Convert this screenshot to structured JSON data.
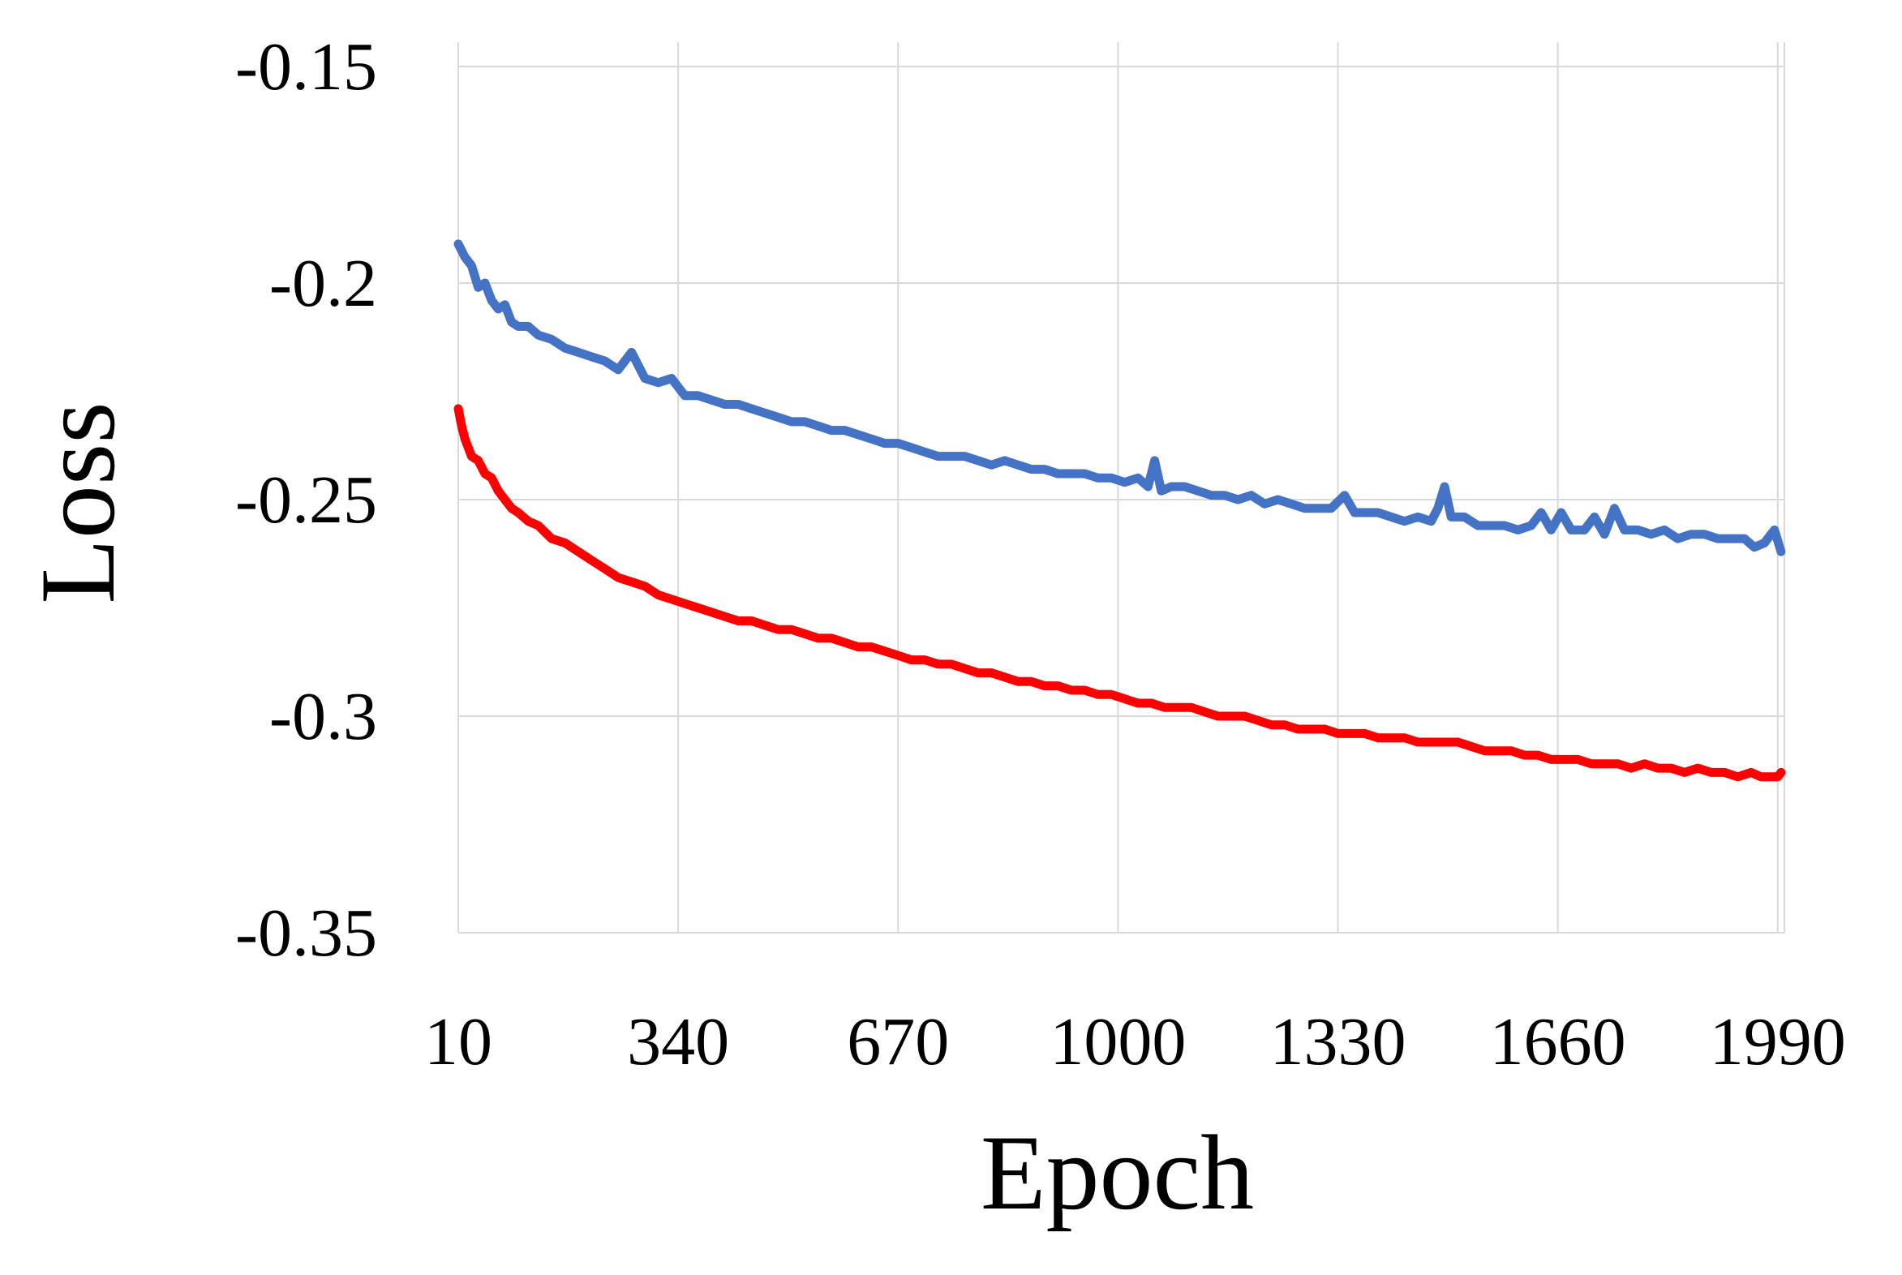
{
  "chart_data": {
    "type": "line",
    "xlabel": "Epoch",
    "ylabel": "Loss",
    "xlim": [
      10,
      2000
    ],
    "ylim": [
      -0.35,
      -0.15
    ],
    "x_ticks": [
      10,
      340,
      670,
      1000,
      1330,
      1660,
      1990
    ],
    "y_ticks": [
      -0.15,
      -0.2,
      -0.25,
      -0.3,
      -0.35
    ],
    "y_tick_labels": [
      "-0.15",
      "-0.2",
      "-0.25",
      "-0.3",
      "-0.35"
    ],
    "grid": true,
    "legend": "none",
    "series": [
      {
        "color": "#4472c4",
        "x": [
          10,
          20,
          30,
          40,
          50,
          60,
          70,
          80,
          90,
          100,
          115,
          130,
          150,
          170,
          190,
          210,
          230,
          250,
          270,
          290,
          310,
          330,
          350,
          370,
          390,
          410,
          430,
          450,
          470,
          490,
          510,
          530,
          550,
          570,
          590,
          610,
          630,
          650,
          670,
          690,
          710,
          730,
          750,
          770,
          790,
          810,
          830,
          850,
          870,
          890,
          910,
          930,
          950,
          970,
          990,
          1010,
          1030,
          1045,
          1055,
          1065,
          1080,
          1100,
          1120,
          1140,
          1160,
          1180,
          1200,
          1220,
          1240,
          1260,
          1280,
          1300,
          1320,
          1340,
          1355,
          1370,
          1390,
          1410,
          1430,
          1450,
          1470,
          1480,
          1490,
          1500,
          1520,
          1540,
          1560,
          1580,
          1600,
          1620,
          1635,
          1650,
          1665,
          1680,
          1700,
          1715,
          1730,
          1745,
          1760,
          1780,
          1800,
          1820,
          1840,
          1860,
          1880,
          1900,
          1920,
          1940,
          1955,
          1970,
          1985,
          1995
        ],
        "y": [
          -0.191,
          -0.194,
          -0.196,
          -0.201,
          -0.2,
          -0.204,
          -0.206,
          -0.205,
          -0.209,
          -0.21,
          -0.21,
          -0.212,
          -0.213,
          -0.215,
          -0.216,
          -0.217,
          -0.218,
          -0.22,
          -0.216,
          -0.222,
          -0.223,
          -0.222,
          -0.226,
          -0.226,
          -0.227,
          -0.228,
          -0.228,
          -0.229,
          -0.23,
          -0.231,
          -0.232,
          -0.232,
          -0.233,
          -0.234,
          -0.234,
          -0.235,
          -0.236,
          -0.237,
          -0.237,
          -0.238,
          -0.239,
          -0.24,
          -0.24,
          -0.24,
          -0.241,
          -0.242,
          -0.241,
          -0.242,
          -0.243,
          -0.243,
          -0.244,
          -0.244,
          -0.244,
          -0.245,
          -0.245,
          -0.246,
          -0.245,
          -0.247,
          -0.241,
          -0.248,
          -0.247,
          -0.247,
          -0.248,
          -0.249,
          -0.249,
          -0.25,
          -0.249,
          -0.251,
          -0.25,
          -0.251,
          -0.252,
          -0.252,
          -0.252,
          -0.249,
          -0.253,
          -0.253,
          -0.253,
          -0.254,
          -0.255,
          -0.254,
          -0.255,
          -0.252,
          -0.247,
          -0.254,
          -0.254,
          -0.256,
          -0.256,
          -0.256,
          -0.257,
          -0.256,
          -0.253,
          -0.257,
          -0.253,
          -0.257,
          -0.257,
          -0.254,
          -0.258,
          -0.252,
          -0.257,
          -0.257,
          -0.258,
          -0.257,
          -0.259,
          -0.258,
          -0.258,
          -0.259,
          -0.259,
          -0.259,
          -0.261,
          -0.26,
          -0.257,
          -0.262
        ]
      },
      {
        "color": "#ff0000",
        "x": [
          10,
          15,
          20,
          30,
          40,
          50,
          60,
          70,
          80,
          90,
          100,
          115,
          130,
          150,
          170,
          190,
          210,
          230,
          250,
          270,
          290,
          310,
          330,
          350,
          370,
          390,
          410,
          430,
          450,
          470,
          490,
          510,
          530,
          550,
          570,
          590,
          610,
          630,
          650,
          670,
          690,
          710,
          730,
          750,
          770,
          790,
          810,
          830,
          850,
          870,
          890,
          910,
          930,
          950,
          970,
          990,
          1010,
          1030,
          1050,
          1070,
          1090,
          1110,
          1130,
          1150,
          1170,
          1190,
          1210,
          1230,
          1250,
          1270,
          1290,
          1310,
          1330,
          1350,
          1370,
          1390,
          1410,
          1430,
          1450,
          1470,
          1490,
          1510,
          1530,
          1550,
          1570,
          1590,
          1610,
          1630,
          1650,
          1670,
          1690,
          1710,
          1730,
          1750,
          1770,
          1790,
          1810,
          1830,
          1850,
          1870,
          1890,
          1910,
          1930,
          1950,
          1965,
          1980,
          1990,
          1995
        ],
        "y": [
          -0.229,
          -0.233,
          -0.236,
          -0.24,
          -0.241,
          -0.244,
          -0.245,
          -0.248,
          -0.25,
          -0.252,
          -0.253,
          -0.255,
          -0.256,
          -0.259,
          -0.26,
          -0.262,
          -0.264,
          -0.266,
          -0.268,
          -0.269,
          -0.27,
          -0.272,
          -0.273,
          -0.274,
          -0.275,
          -0.276,
          -0.277,
          -0.278,
          -0.278,
          -0.279,
          -0.28,
          -0.28,
          -0.281,
          -0.282,
          -0.282,
          -0.283,
          -0.284,
          -0.284,
          -0.285,
          -0.286,
          -0.287,
          -0.287,
          -0.288,
          -0.288,
          -0.289,
          -0.29,
          -0.29,
          -0.291,
          -0.292,
          -0.292,
          -0.293,
          -0.293,
          -0.294,
          -0.294,
          -0.295,
          -0.295,
          -0.296,
          -0.297,
          -0.297,
          -0.298,
          -0.298,
          -0.298,
          -0.299,
          -0.3,
          -0.3,
          -0.3,
          -0.301,
          -0.302,
          -0.302,
          -0.303,
          -0.303,
          -0.303,
          -0.304,
          -0.304,
          -0.304,
          -0.305,
          -0.305,
          -0.305,
          -0.306,
          -0.306,
          -0.306,
          -0.306,
          -0.307,
          -0.308,
          -0.308,
          -0.308,
          -0.309,
          -0.309,
          -0.31,
          -0.31,
          -0.31,
          -0.311,
          -0.311,
          -0.311,
          -0.312,
          -0.311,
          -0.312,
          -0.312,
          -0.313,
          -0.312,
          -0.313,
          -0.313,
          -0.314,
          -0.313,
          -0.314,
          -0.314,
          -0.314,
          -0.313
        ]
      }
    ]
  }
}
